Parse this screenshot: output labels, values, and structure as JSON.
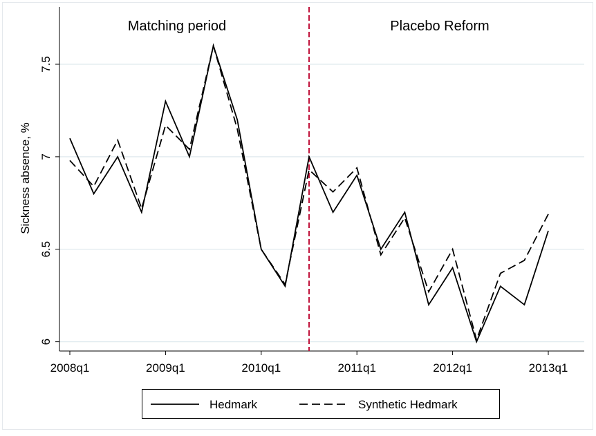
{
  "chart_data": {
    "type": "line",
    "y_label": "Sickness absence, %",
    "annotations": [
      "Matching period",
      "Placebo Reform"
    ],
    "categories": [
      "2008q1",
      null,
      null,
      null,
      "2009q1",
      null,
      null,
      null,
      "2010q1",
      null,
      null,
      null,
      "2011q1",
      null,
      null,
      null,
      "2012q1",
      null,
      null,
      null,
      "2013q1"
    ],
    "series": [
      {
        "name": "Hedmark",
        "color": "#000000",
        "dash": false,
        "values": [
          7.1,
          6.8,
          7.0,
          6.7,
          7.3,
          7.0,
          7.6,
          7.2,
          6.5,
          6.3,
          7.0,
          6.7,
          6.9,
          6.5,
          6.7,
          6.2,
          6.4,
          6.0,
          6.3,
          6.2,
          6.6
        ]
      },
      {
        "name": "Synthetic Hedmark",
        "color": "#000000",
        "dash": true,
        "values": [
          6.98,
          6.84,
          7.09,
          6.72,
          7.17,
          7.04,
          7.6,
          7.15,
          6.5,
          6.31,
          6.93,
          6.81,
          6.94,
          6.47,
          6.67,
          6.27,
          6.5,
          6.01,
          6.37,
          6.44,
          6.69
        ]
      }
    ],
    "vline": {
      "index": 10,
      "color": "#c0143c"
    },
    "ylim": [
      5.95,
      7.81
    ],
    "yticks": [
      6,
      6.5,
      7,
      7.5
    ],
    "grid": true,
    "legend": "bottom"
  }
}
